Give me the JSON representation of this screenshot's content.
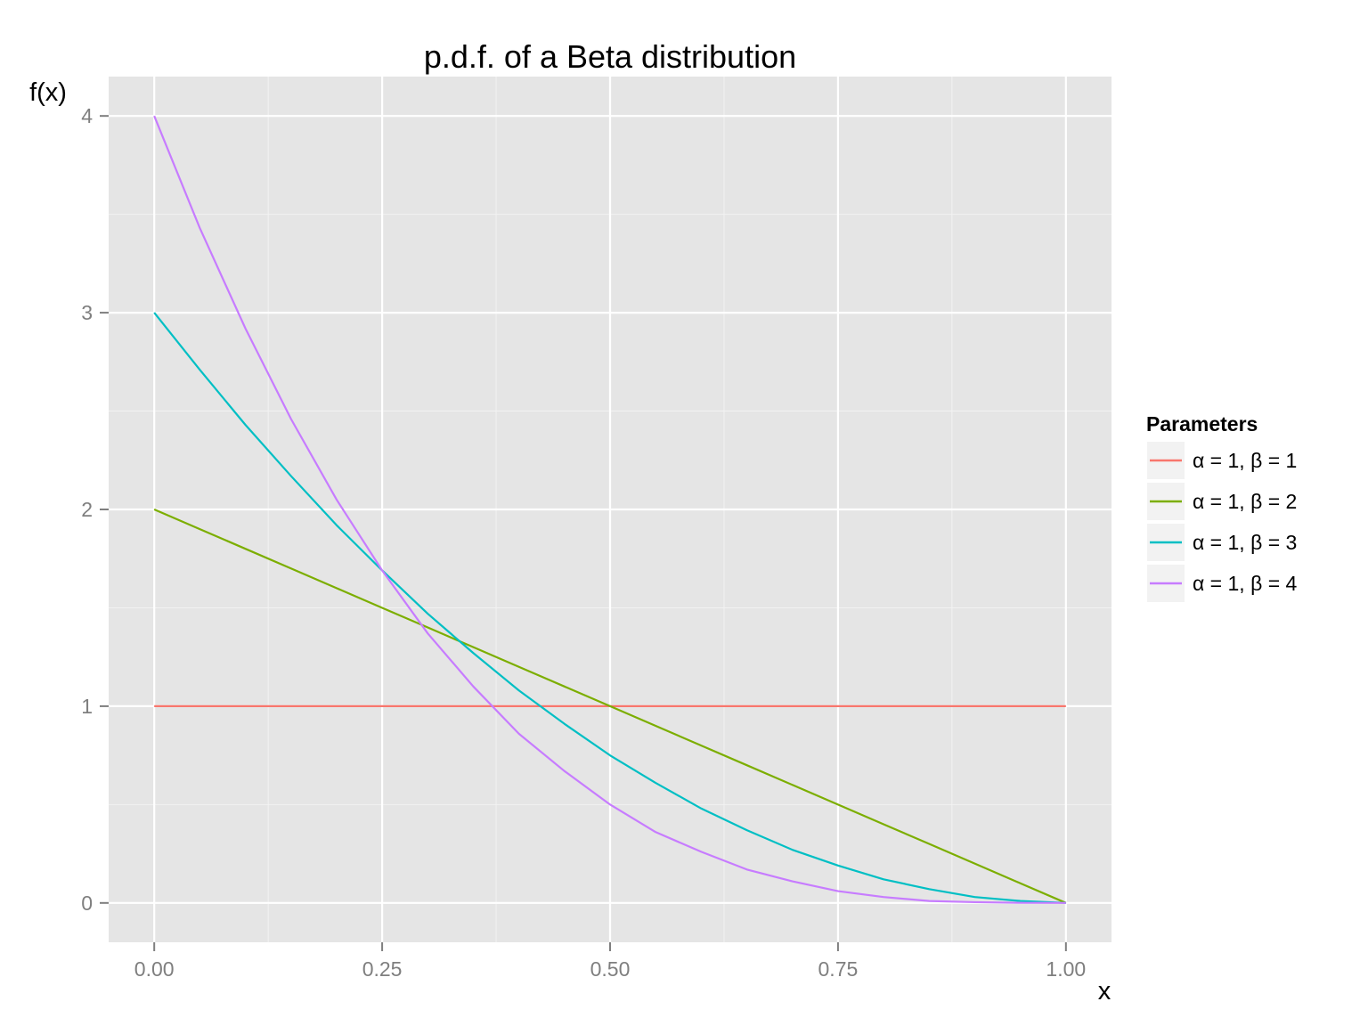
{
  "chart_data": {
    "type": "line",
    "title": "p.d.f. of a Beta distribution",
    "xlabel": "x",
    "ylabel": "f(x)",
    "xlim": [
      -0.05,
      1.05
    ],
    "ylim": [
      -0.2,
      4.2
    ],
    "x_ticks": [
      0,
      0.25,
      0.5,
      0.75,
      1
    ],
    "x_tick_labels": [
      "0.00",
      "0.25",
      "0.50",
      "0.75",
      "1.00"
    ],
    "y_ticks": [
      0,
      1,
      2,
      3,
      4
    ],
    "y_tick_labels": [
      "0",
      "1",
      "2",
      "3",
      "4"
    ],
    "grid": true,
    "legend": {
      "title": "Parameters",
      "position": "right"
    },
    "x": [
      0,
      0.05,
      0.1,
      0.15,
      0.2,
      0.25,
      0.3,
      0.35,
      0.4,
      0.45,
      0.5,
      0.55,
      0.6,
      0.65,
      0.7,
      0.75,
      0.8,
      0.85,
      0.9,
      0.95,
      1
    ],
    "series": [
      {
        "name": "α = 1, β = 1",
        "color": "#F8766D",
        "values": [
          1,
          1,
          1,
          1,
          1,
          1,
          1,
          1,
          1,
          1,
          1,
          1,
          1,
          1,
          1,
          1,
          1,
          1,
          1,
          1,
          1
        ]
      },
      {
        "name": "α = 1, β = 2",
        "color": "#7CAE00",
        "values": [
          2,
          1.9,
          1.8,
          1.7,
          1.6,
          1.5,
          1.4,
          1.3,
          1.2,
          1.1,
          1,
          0.9,
          0.8,
          0.7,
          0.6,
          0.5,
          0.4,
          0.3,
          0.2,
          0.1,
          0
        ]
      },
      {
        "name": "α = 1, β = 3",
        "color": "#00BFC4",
        "values": [
          3,
          2.71,
          2.43,
          2.17,
          1.92,
          1.69,
          1.47,
          1.27,
          1.08,
          0.91,
          0.75,
          0.61,
          0.48,
          0.37,
          0.27,
          0.19,
          0.12,
          0.07,
          0.03,
          0.01,
          0
        ]
      },
      {
        "name": "α = 1, β = 4",
        "color": "#C77CFF",
        "values": [
          4,
          3.43,
          2.92,
          2.46,
          2.05,
          1.69,
          1.37,
          1.1,
          0.86,
          0.67,
          0.5,
          0.36,
          0.26,
          0.17,
          0.11,
          0.06,
          0.03,
          0.01,
          0.004,
          0.0005,
          0
        ]
      }
    ]
  }
}
